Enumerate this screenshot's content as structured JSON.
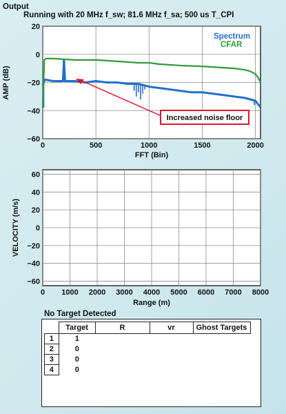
{
  "header": {
    "title": "Output",
    "subtitle": "Running with 20 MHz f_sw; 81.6 MHz f_sa; 500 us T_CPI"
  },
  "chart_data": [
    {
      "type": "line",
      "xlabel": "FFT (Bin)",
      "ylabel": "AMP (dB)",
      "xlim": [
        0,
        2048
      ],
      "ylim": [
        -60,
        20
      ],
      "xticks": [
        "0",
        "500",
        "1000",
        "1500",
        "2000"
      ],
      "yticks": [
        "20",
        "0",
        "−20",
        "−40",
        "−60"
      ],
      "grid": true,
      "legend_position": "top-right",
      "series": [
        {
          "name": "Spectrum",
          "color": "#1f6fd1",
          "x": [
            0,
            20,
            100,
            190,
            200,
            210,
            300,
            400,
            500,
            600,
            700,
            800,
            900,
            1000,
            1100,
            1200,
            1300,
            1400,
            1500,
            1600,
            1700,
            1800,
            1900,
            1950,
            2000,
            2030,
            2048
          ],
          "y": [
            -22,
            -18,
            -19,
            -19,
            -4,
            -19,
            -19,
            -20,
            -19,
            -20,
            -20,
            -21,
            -21,
            -23,
            -24,
            -25,
            -26,
            -27,
            -27,
            -28,
            -29,
            -30,
            -31,
            -32,
            -33,
            -36,
            -37
          ],
          "spikes": [
            {
              "x": 10,
              "y": -38
            },
            {
              "x": 195,
              "y": -4
            },
            {
              "x": 860,
              "y": -26
            },
            {
              "x": 880,
              "y": -30
            },
            {
              "x": 900,
              "y": -27
            },
            {
              "x": 920,
              "y": -32
            },
            {
              "x": 940,
              "y": -28
            },
            {
              "x": 960,
              "y": -25
            },
            {
              "x": 1990,
              "y": -36
            },
            {
              "x": 2010,
              "y": -34
            },
            {
              "x": 2040,
              "y": -38
            }
          ]
        },
        {
          "name": "CFAR",
          "color": "#2f9a3a",
          "x": [
            0,
            15,
            30,
            100,
            300,
            500,
            700,
            900,
            1000,
            1100,
            1300,
            1500,
            1700,
            1800,
            1900,
            1950,
            2000,
            2030,
            2048
          ],
          "y": [
            -38,
            -4,
            -3,
            -3,
            -4,
            -4,
            -5,
            -6,
            -6,
            -7,
            -8,
            -8.5,
            -9.5,
            -10,
            -11,
            -12,
            -14,
            -17,
            -20
          ]
        }
      ],
      "annotations": [
        {
          "text": "Increased noise floor",
          "arrow_to": {
            "x": 300,
            "y": -20
          },
          "color": "#e0142e"
        }
      ]
    },
    {
      "type": "scatter",
      "xlabel": "Range (m)",
      "ylabel": "VELOCITY (m/s)",
      "xlim": [
        0,
        8000
      ],
      "ylim": [
        -65,
        65
      ],
      "xticks": [
        "0",
        "1000",
        "2000",
        "3000",
        "4000",
        "5000",
        "6000",
        "7000",
        "8000"
      ],
      "yticks": [
        "60",
        "40",
        "20",
        "0",
        "−20",
        "−40",
        "−60"
      ],
      "grid": true,
      "points": []
    }
  ],
  "results": {
    "status": "No Target Detected",
    "columns": [
      "Target",
      "R",
      "vr",
      "Ghost Targets"
    ],
    "rows": [
      {
        "index": "1",
        "target": "1"
      },
      {
        "index": "2",
        "target": "0"
      },
      {
        "index": "3",
        "target": "0"
      },
      {
        "index": "4",
        "target": "0"
      }
    ]
  }
}
